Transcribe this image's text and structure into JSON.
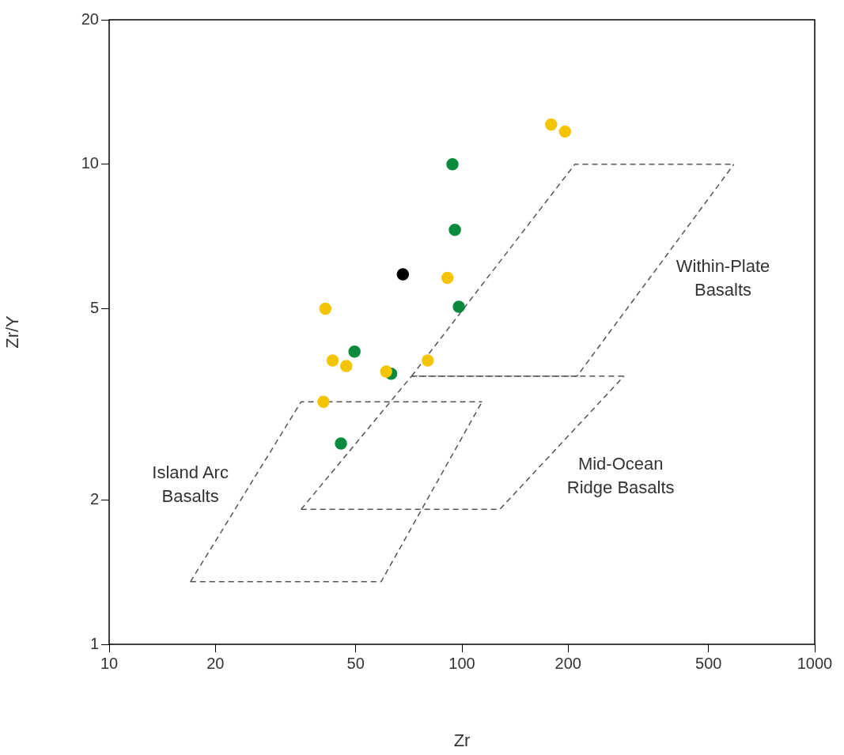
{
  "chart_data": {
    "type": "scatter",
    "xlabel": "Zr",
    "ylabel": "Zr/Y",
    "log": "xy",
    "xlim": [
      10,
      1000
    ],
    "ylim": [
      1,
      20
    ],
    "xticks": [
      10,
      20,
      50,
      100,
      200,
      500,
      1000
    ],
    "yticks": [
      1,
      2,
      5,
      10,
      20
    ],
    "grid": false,
    "legend": false,
    "marker": "circle",
    "series": [
      {
        "color": "#f5c400",
        "x": [
          179,
          196,
          91,
          41,
          43,
          47,
          61,
          80,
          40.5
        ],
        "values": [
          12.1,
          11.7,
          5.8,
          5,
          3.9,
          3.8,
          3.7,
          3.9,
          3.2
        ]
      },
      {
        "color": "#0a8a3c",
        "x": [
          94,
          95.5,
          98,
          49.6,
          63,
          45.4
        ],
        "values": [
          10,
          7.3,
          5.05,
          4.07,
          3.66,
          2.62
        ]
      },
      {
        "color": "#000000",
        "x": [
          68
        ],
        "values": [
          5.9
        ]
      },
      {
        "type": "line",
        "color": "#555555",
        "line_style": "dashed",
        "marker": "none",
        "x": [
          17,
          59,
          114
        ],
        "values": [
          1.35,
          1.35,
          3.2
        ]
      },
      {
        "type": "line",
        "color": "#555555",
        "line_style": "dashed",
        "marker": "none",
        "x": [
          17,
          35,
          114
        ],
        "values": [
          1.35,
          3.2,
          3.2
        ]
      },
      {
        "type": "line",
        "color": "#555555",
        "line_style": "dashed",
        "marker": "none",
        "x": [
          35,
          128,
          288
        ],
        "values": [
          1.91,
          1.91,
          3.62
        ]
      },
      {
        "type": "line",
        "color": "#555555",
        "line_style": "dashed",
        "marker": "none",
        "x": [
          35,
          72,
          288
        ],
        "values": [
          1.91,
          3.62,
          3.62
        ]
      },
      {
        "type": "line",
        "color": "#555555",
        "line_style": "dashed",
        "marker": "none",
        "x": [
          72,
          212,
          590
        ],
        "values": [
          3.62,
          3.62,
          10
        ]
      },
      {
        "type": "line",
        "color": "#555555",
        "line_style": "dashed",
        "marker": "none",
        "x": [
          72,
          209,
          590
        ],
        "values": [
          3.62,
          10,
          10
        ]
      }
    ],
    "annotations": [
      "Island Arc\nBasalts",
      "Mid-Ocean\nRidge Basalts",
      "Within-Plate\nBasalts"
    ]
  }
}
